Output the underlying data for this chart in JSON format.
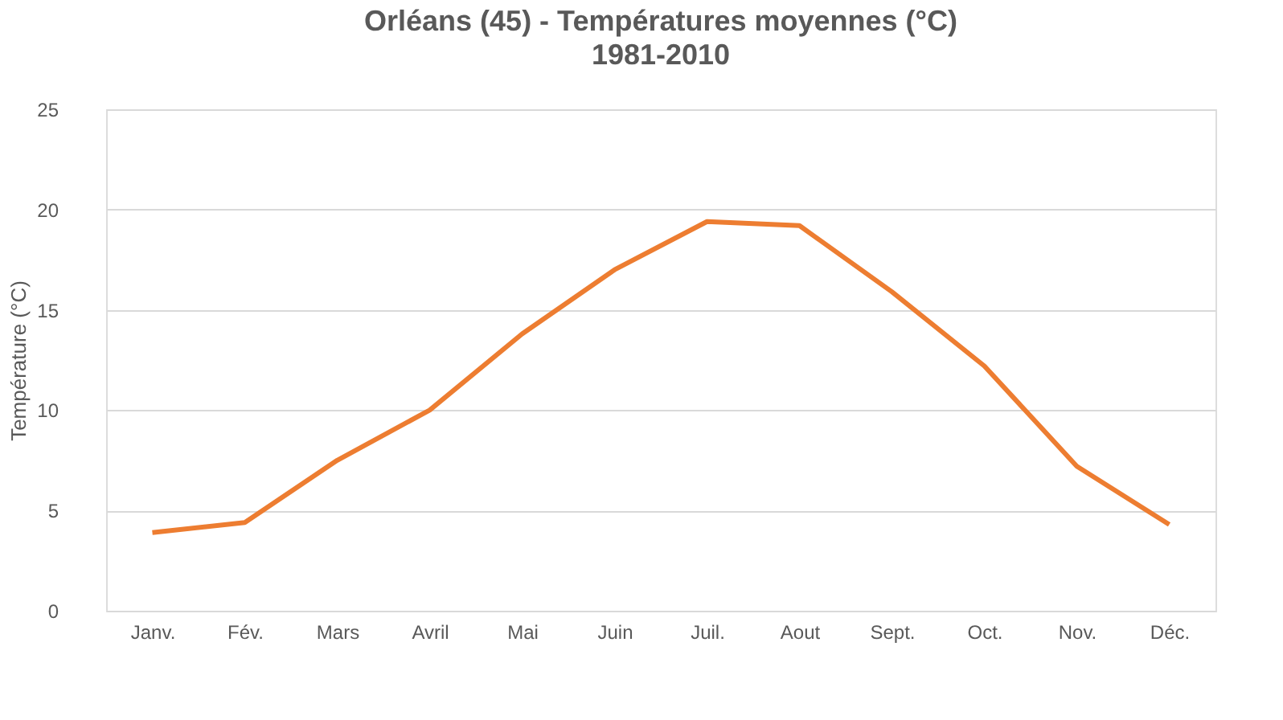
{
  "chart_data": {
    "type": "line",
    "title": "Orléans (45) - Températures moyennes (°C)",
    "subtitle": "1981-2010",
    "ylabel": "Température (°C)",
    "categories": [
      "Janv.",
      "Fév.",
      "Mars",
      "Avril",
      "Mai",
      "Juin",
      "Juil.",
      "Aout",
      "Sept.",
      "Oct.",
      "Nov.",
      "Déc."
    ],
    "series": [
      {
        "color": "#ed7d31",
        "values": [
          3.9,
          4.4,
          7.5,
          10.0,
          13.8,
          17.0,
          19.4,
          19.2,
          15.9,
          12.2,
          7.2,
          4.3
        ]
      }
    ],
    "ylim": [
      0,
      25
    ],
    "yticks": [
      0,
      5,
      10,
      15,
      20,
      25
    ],
    "grid": "y",
    "legend": false,
    "marker": "none",
    "line_style": "solid"
  }
}
